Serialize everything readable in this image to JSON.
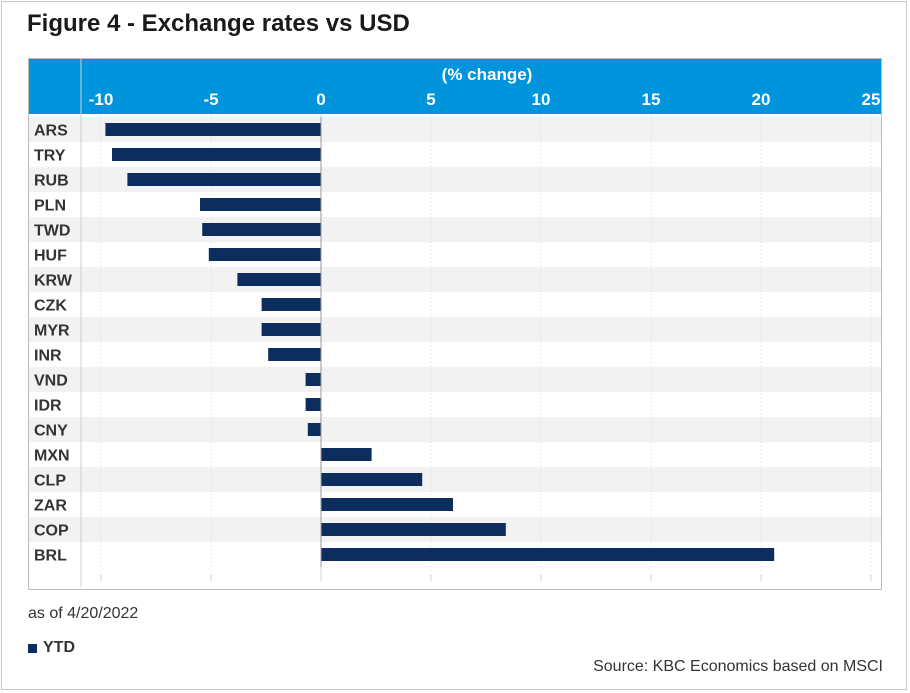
{
  "title": "Figure 4 - Exchange rates vs USD",
  "footnote": "as of 4/20/2022",
  "source": "Source: KBC Economics based on MSCI",
  "colors": {
    "bar": "#0c2d5e",
    "header": "#0094dc",
    "band": "#f2f2f2"
  },
  "chart_data": {
    "type": "bar",
    "orientation": "horizontal",
    "xlabel": "(% change)",
    "xlim": [
      -10,
      25
    ],
    "xticks": [
      "-10",
      "-5",
      "0",
      "5",
      "10",
      "15",
      "20",
      "25"
    ],
    "grid": true,
    "legend_position": "bottom-left",
    "categories": [
      "ARS",
      "TRY",
      "RUB",
      "PLN",
      "TWD",
      "HUF",
      "KRW",
      "CZK",
      "MYR",
      "INR",
      "VND",
      "IDR",
      "CNY",
      "MXN",
      "CLP",
      "ZAR",
      "COP",
      "BRL"
    ],
    "series": [
      {
        "name": "YTD",
        "values": [
          -9.8,
          -9.5,
          -8.8,
          -5.5,
          -5.4,
          -5.1,
          -3.8,
          -2.7,
          -2.7,
          -2.4,
          -0.7,
          -0.7,
          -0.6,
          2.3,
          4.6,
          6.0,
          8.4,
          20.6
        ]
      }
    ]
  }
}
